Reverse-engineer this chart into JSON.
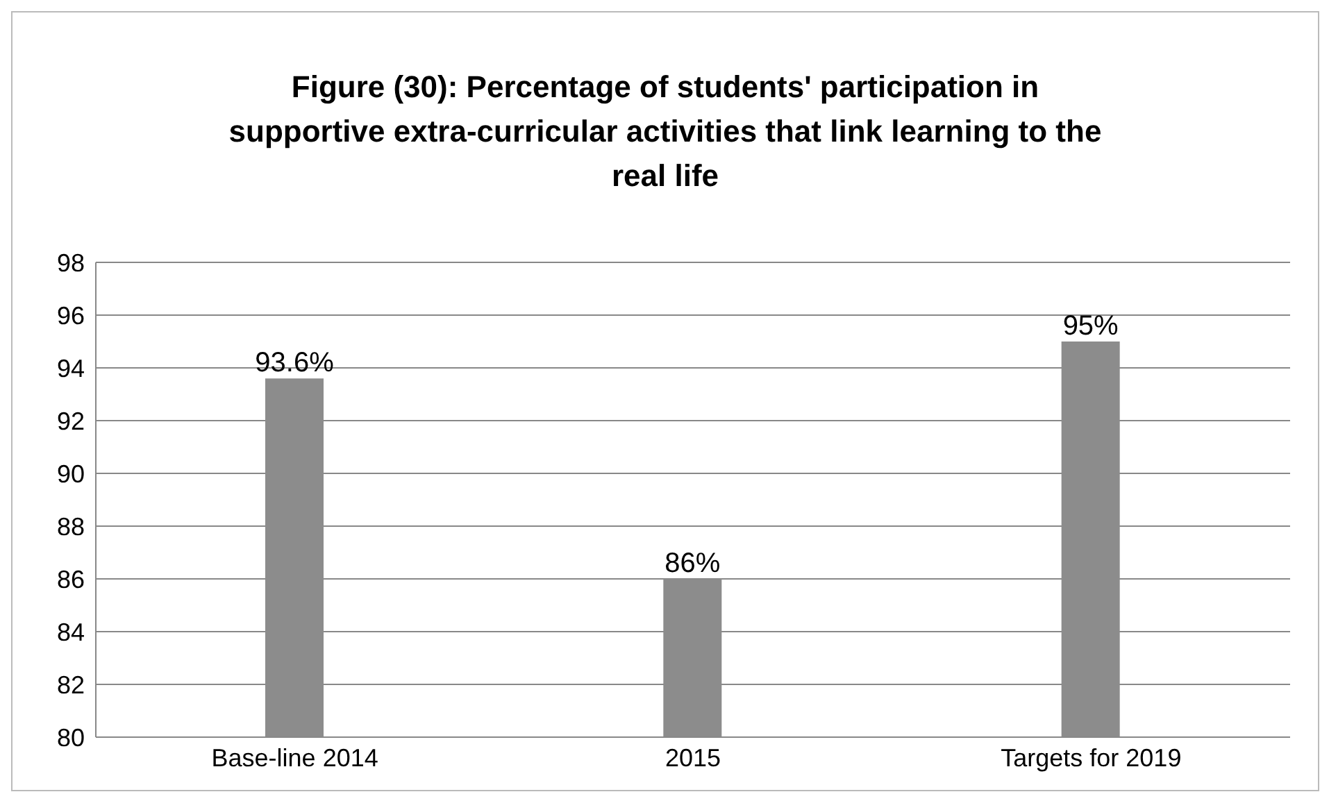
{
  "chart_data": {
    "type": "bar",
    "title": "Figure (30): Percentage of students' participation in supportive extra-curricular activities that link learning to the real life",
    "categories": [
      "Base-line 2014",
      "2015",
      "Targets for 2019"
    ],
    "values": [
      93.6,
      86,
      95
    ],
    "value_labels": [
      "93.6%",
      "86%",
      "95%"
    ],
    "color": "#8c8c8c",
    "ylim": [
      80,
      98
    ],
    "yticks": [
      80,
      82,
      84,
      86,
      88,
      90,
      92,
      94,
      96,
      98
    ],
    "grid": "y"
  }
}
